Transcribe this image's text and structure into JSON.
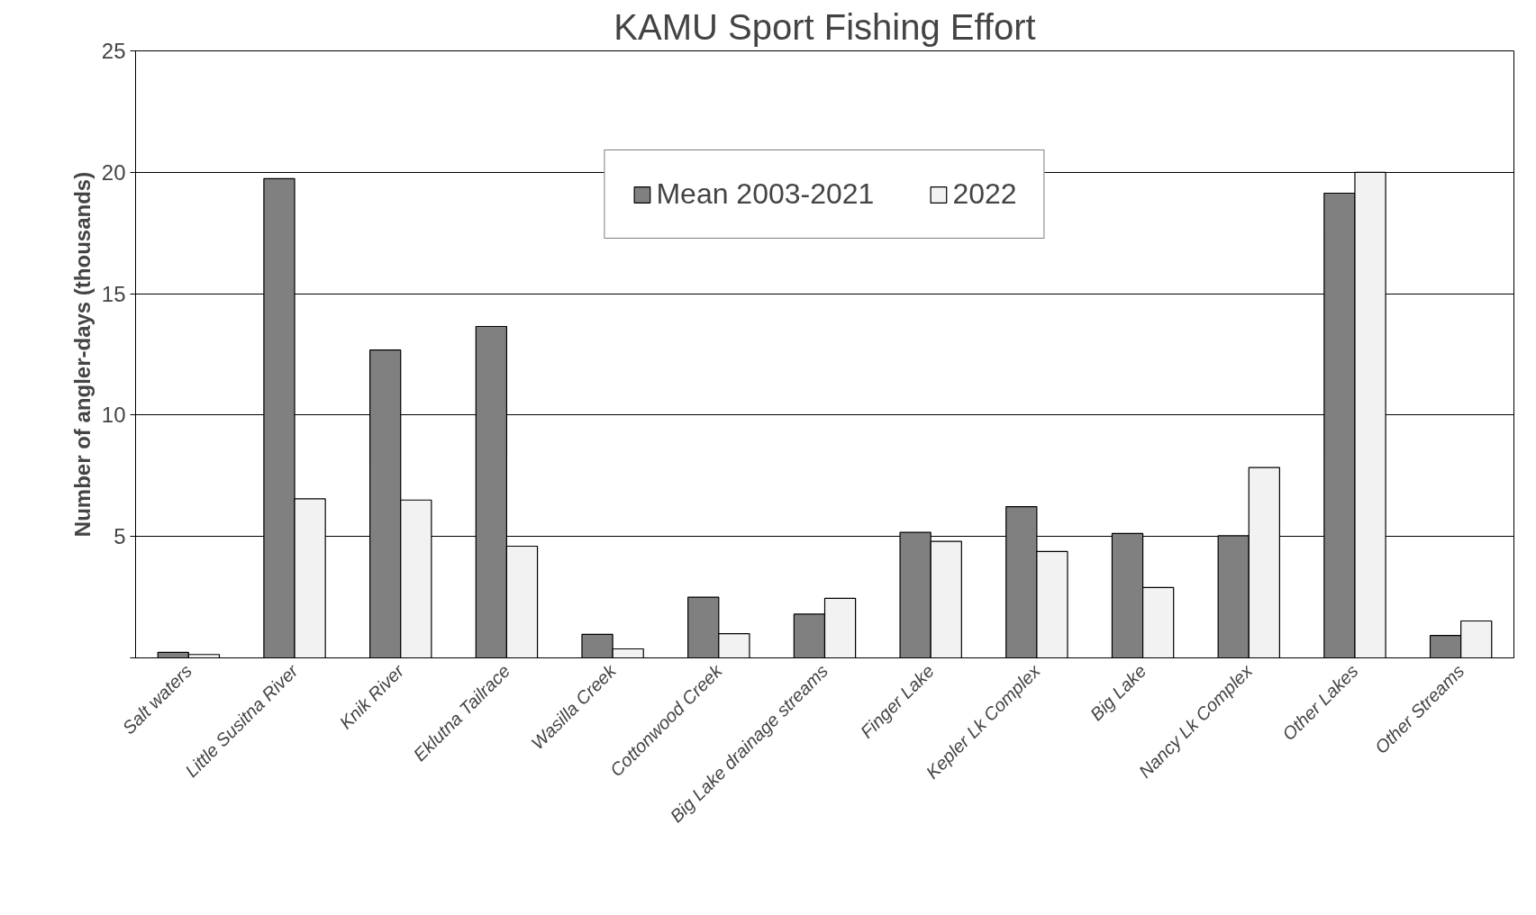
{
  "chart_data": {
    "type": "bar",
    "title": "KAMU Sport Fishing Effort",
    "ylabel": "Number of angler-days (thousands)",
    "categories": [
      "Salt waters",
      "Little Susitna River",
      "Knik River",
      "Eklutna Tailrace",
      "Wasilla Creek",
      "Cottonwood Creek",
      "Big Lake drainage streams",
      "Finger Lake",
      "Kepler Lk Complex",
      "Big Lake",
      "Nancy Lk Complex",
      "Other Lakes",
      "Other Streams"
    ],
    "series": [
      {
        "name": "Mean 2003-2021",
        "color": "#808080",
        "values": [
          0.23,
          19.74,
          12.68,
          13.65,
          0.97,
          2.5,
          1.8,
          5.17,
          6.23,
          5.12,
          5.03,
          19.14,
          0.92
        ]
      },
      {
        "name": "2022",
        "color": "#f2f2f2",
        "values": [
          0.14,
          6.55,
          6.5,
          4.6,
          0.37,
          1.0,
          2.45,
          4.8,
          4.38,
          2.9,
          7.84,
          20.0,
          1.52
        ]
      }
    ],
    "ylim": [
      0,
      25
    ],
    "yticks": [
      {
        "value": 0,
        "label": null
      },
      5,
      10,
      15,
      20,
      25
    ],
    "grid": "y",
    "legend": "top"
  }
}
